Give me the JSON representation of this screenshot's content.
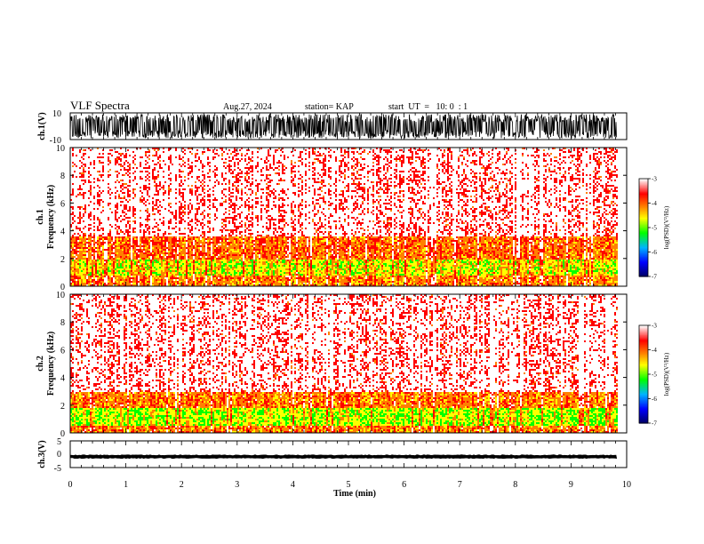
{
  "header": {
    "title": "VLF Spectra",
    "date": "Aug.27, 2024",
    "station": "station= KAP",
    "start": "start  UT  =   10: 0  : 1"
  },
  "colors": {
    "spectrogram_ramp": [
      "#000080",
      "#0000ff",
      "#00c0ff",
      "#00ff00",
      "#ffff00",
      "#ff8000",
      "#ff0000",
      "#ffffff"
    ]
  },
  "chart_data": [
    {
      "type": "line",
      "name": "ch1-waveform",
      "ylabel": "ch.1(V)",
      "ylim": [
        -10,
        10
      ],
      "yticklabels": [
        "-10",
        "10"
      ],
      "xlim": [
        0,
        10
      ]
    },
    {
      "type": "heatmap",
      "name": "ch1-spectrogram",
      "ylabel": "ch.1\nFrequency (kHz)",
      "ylim": [
        0,
        10
      ],
      "yticks": [
        0,
        2,
        4,
        6,
        8,
        10
      ],
      "xlim": [
        0,
        10
      ],
      "data_end_min": 9.82,
      "colorbar": {
        "label": "log(PSD)(V²/Hz)",
        "range": [
          -7,
          -3
        ],
        "ticks": [
          -3,
          -4,
          -5,
          -6,
          -7
        ]
      },
      "bands_kHz": [
        {
          "from": 0.0,
          "to": 0.8,
          "level": -4.3
        },
        {
          "from": 0.8,
          "to": 2.0,
          "level": -4.8
        },
        {
          "from": 2.0,
          "to": 3.6,
          "level": -4.2
        },
        {
          "from": 3.6,
          "to": 10.0,
          "level": -3.6
        }
      ]
    },
    {
      "type": "heatmap",
      "name": "ch2-spectrogram",
      "ylabel": "ch.2\nFrequency (kHz)",
      "ylim": [
        0,
        10
      ],
      "yticks": [
        0,
        2,
        4,
        6,
        8,
        10
      ],
      "xlim": [
        0,
        10
      ],
      "data_end_min": 9.82,
      "colorbar": {
        "label": "log(PSD)(V²/Hz)",
        "range": [
          -7,
          -3
        ],
        "ticks": [
          -3,
          -4,
          -5,
          -6,
          -7
        ]
      },
      "bands_kHz": [
        {
          "from": 0.0,
          "to": 0.6,
          "level": -4.3
        },
        {
          "from": 0.6,
          "to": 1.8,
          "level": -5.0
        },
        {
          "from": 1.8,
          "to": 3.0,
          "level": -4.3
        },
        {
          "from": 3.0,
          "to": 10.0,
          "level": -3.6
        }
      ]
    },
    {
      "type": "line",
      "name": "ch3-waveform",
      "ylabel": "ch.3(V)",
      "ylim": [
        -5,
        5
      ],
      "yticklabels": [
        "-5",
        "0",
        "5"
      ],
      "xlim": [
        0,
        10
      ],
      "xlabel": "Time (min)",
      "xticks": [
        0,
        1,
        2,
        3,
        4,
        5,
        6,
        7,
        8,
        9,
        10
      ]
    }
  ]
}
